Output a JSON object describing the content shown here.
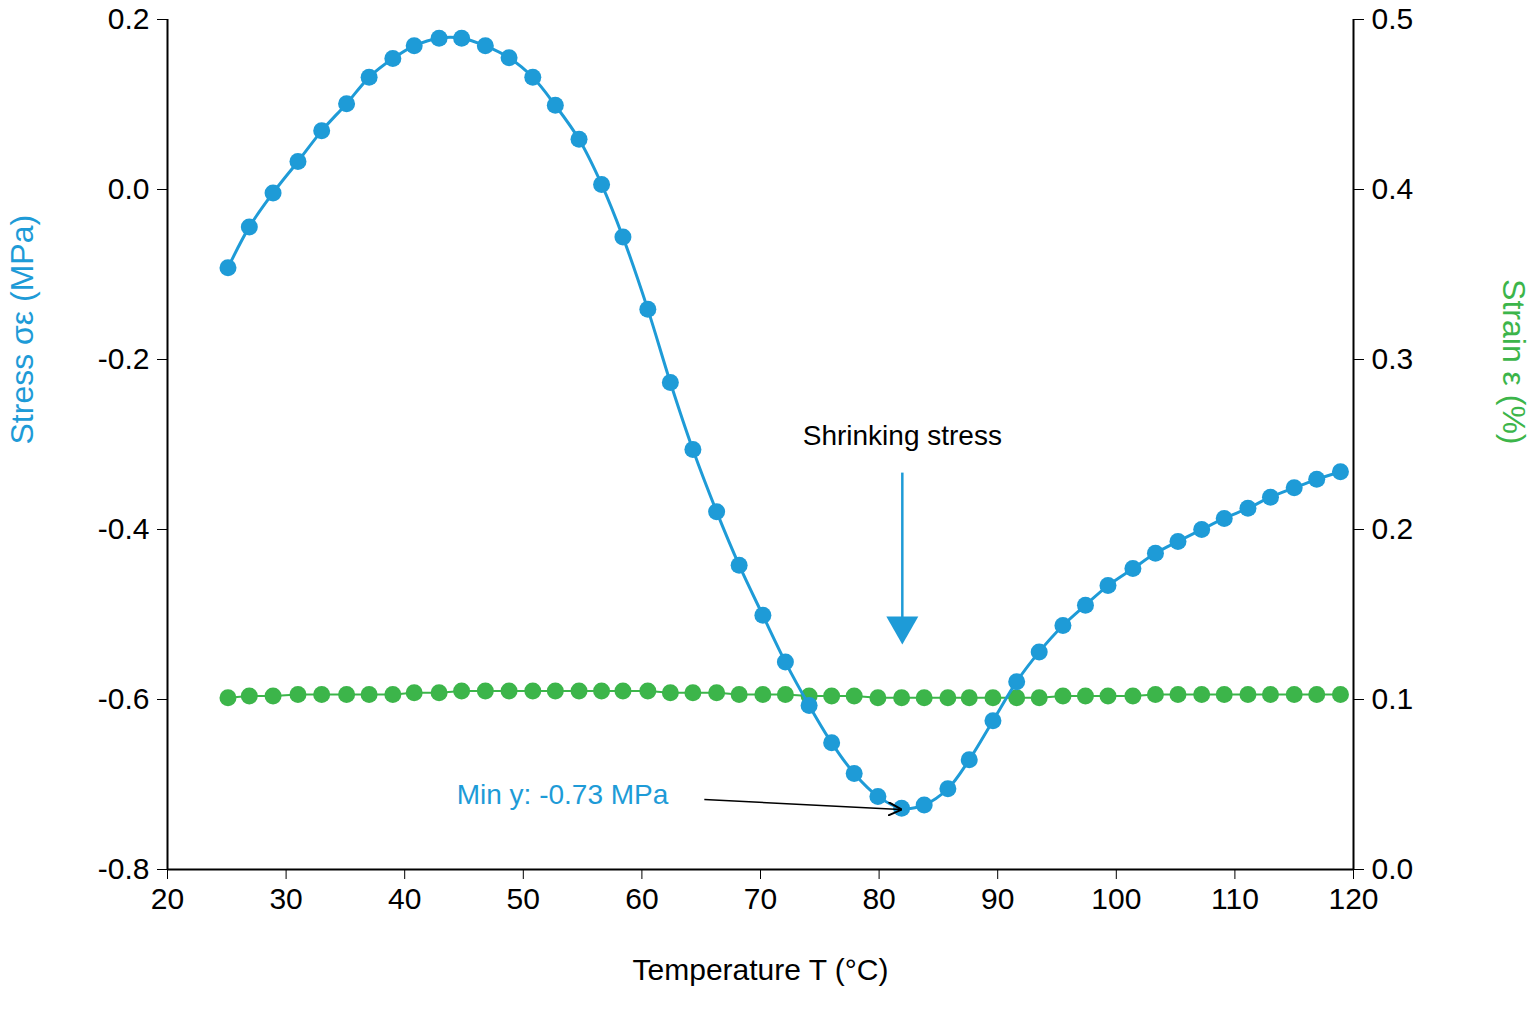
{
  "chart_data": {
    "type": "line",
    "xlabel": "Temperature T (°C)",
    "ylabel": "Stress σε (MPa)",
    "y2label": "Strain ε (%)",
    "grid": false,
    "xlim": [
      20,
      120
    ],
    "xticks": [
      20,
      30,
      40,
      50,
      60,
      70,
      80,
      90,
      100,
      110,
      120
    ],
    "ylim": [
      -0.8,
      0.2
    ],
    "yticks": [
      -0.8,
      -0.6,
      -0.4,
      -0.2,
      {
        "value": 0,
        "label": "0.0"
      },
      0.2
    ],
    "y2lim": [
      0,
      0.5
    ],
    "y2ticks": [
      {
        "value": 0,
        "label": "0.0"
      },
      0.1,
      0.2,
      0.3,
      0.4,
      0.5
    ],
    "x": [
      25.1,
      26.9,
      28.9,
      31.0,
      33.0,
      35.1,
      37.0,
      39.0,
      40.8,
      42.9,
      44.8,
      46.8,
      48.8,
      50.8,
      52.7,
      54.7,
      56.6,
      58.4,
      60.5,
      62.4,
      64.3,
      66.3,
      68.2,
      70.2,
      72.1,
      74.1,
      76.0,
      77.9,
      79.9,
      81.9,
      83.8,
      85.8,
      87.6,
      89.6,
      91.6,
      93.5,
      95.5,
      97.4,
      99.3,
      101.4,
      103.3,
      105.2,
      107.2,
      109.1,
      111.1,
      113.0,
      115.0,
      116.9,
      118.9
    ],
    "series": [
      {
        "color": "#1e9bd7",
        "marker": "circle",
        "line_style": "solid",
        "values": [
          -0.092,
          -0.044,
          -0.004,
          0.033,
          0.069,
          0.101,
          0.132,
          0.154,
          0.169,
          0.178,
          0.178,
          0.169,
          0.155,
          0.132,
          0.099,
          0.059,
          0.006,
          -0.056,
          -0.141,
          -0.227,
          -0.306,
          -0.379,
          -0.442,
          -0.501,
          -0.556,
          -0.607,
          -0.651,
          -0.687,
          -0.714,
          -0.728,
          -0.724,
          -0.705,
          -0.671,
          -0.625,
          -0.579,
          -0.544,
          -0.513,
          -0.489,
          -0.466,
          -0.446,
          -0.428,
          -0.414,
          -0.4,
          -0.387,
          -0.375,
          -0.362,
          -0.351,
          -0.341,
          -0.332
        ]
      },
      {
        "color": "#3cb54a",
        "marker": "circle",
        "line_style": "solid",
        "axis": "y2",
        "values": [
          0.101,
          0.102,
          0.102,
          0.103,
          0.103,
          0.103,
          0.103,
          0.103,
          0.104,
          0.104,
          0.105,
          0.105,
          0.105,
          0.105,
          0.105,
          0.105,
          0.105,
          0.105,
          0.105,
          0.104,
          0.104,
          0.104,
          0.103,
          0.103,
          0.103,
          0.102,
          0.102,
          0.102,
          0.101,
          0.101,
          0.101,
          0.101,
          0.101,
          0.101,
          0.101,
          0.101,
          0.102,
          0.102,
          0.102,
          0.102,
          0.103,
          0.103,
          0.103,
          0.103,
          0.103,
          0.103,
          0.103,
          0.103,
          0.103
        ]
      }
    ],
    "annotations": [
      {
        "text": "Shrinking stress",
        "x": 82,
        "y": -0.536
      },
      {
        "text": "Min y: -0.73 MPa",
        "x": 82,
        "y": -0.73
      }
    ]
  }
}
